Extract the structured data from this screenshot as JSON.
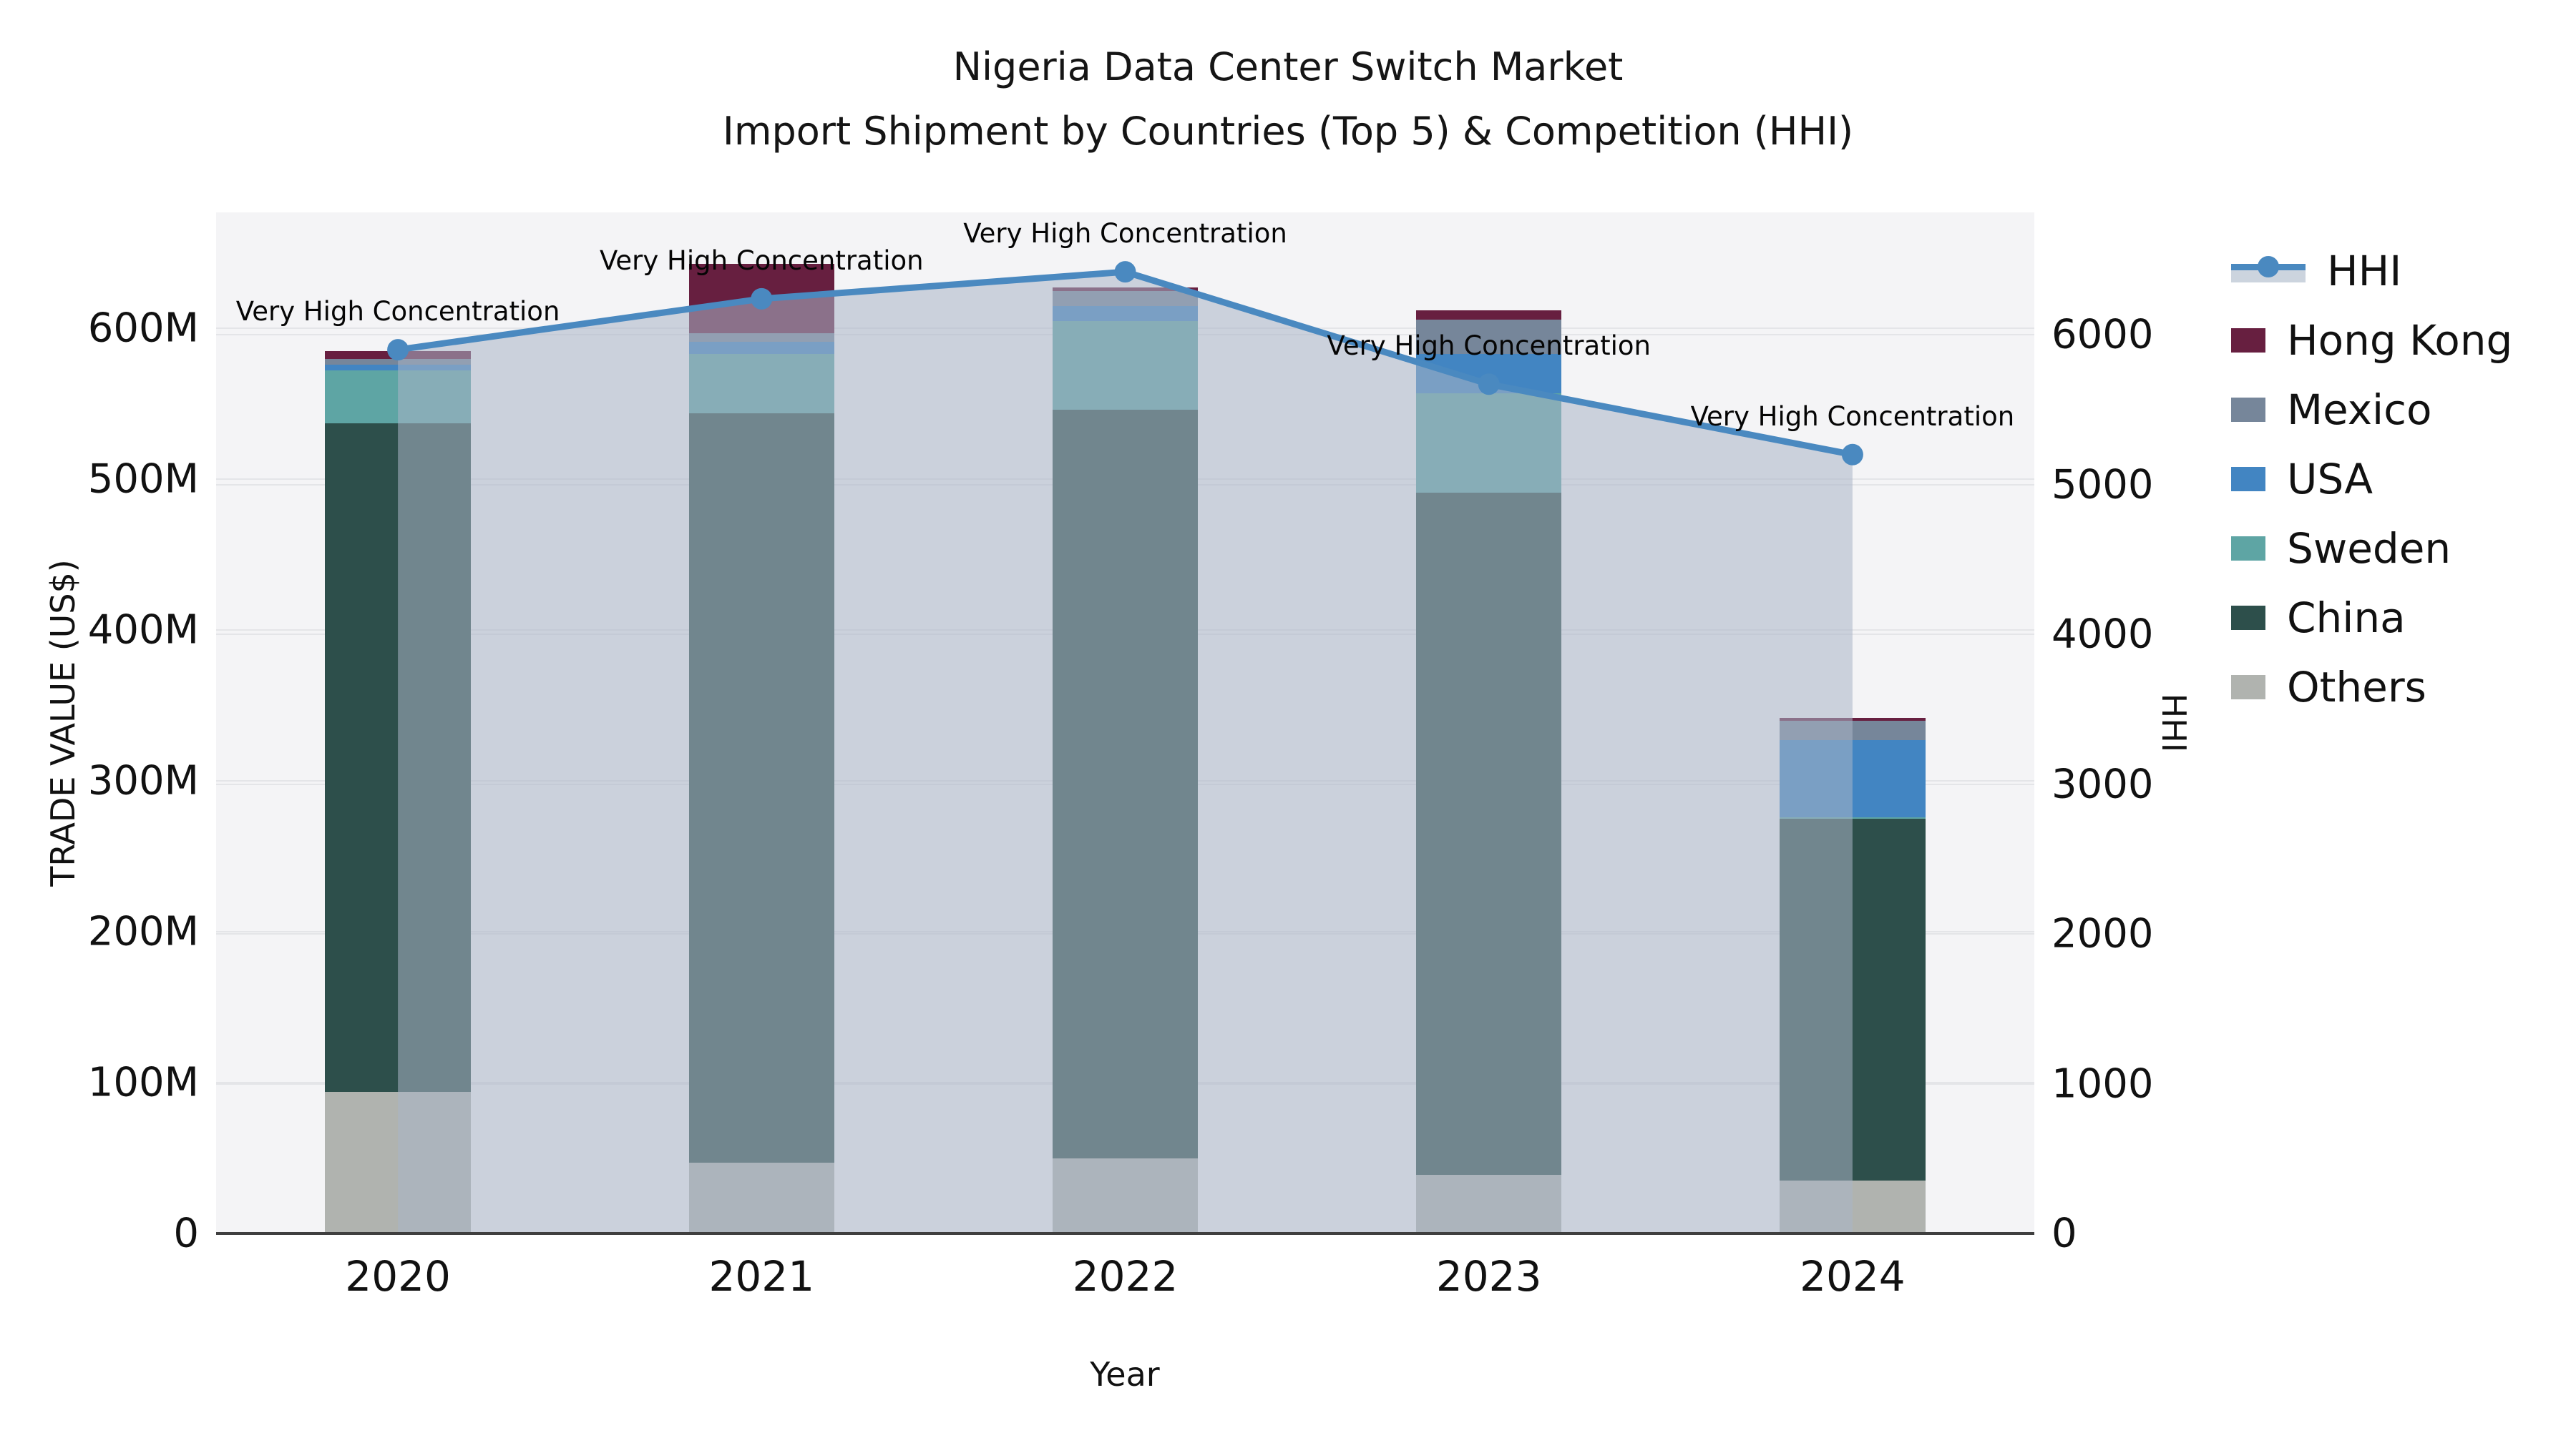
{
  "title": {
    "line1": "Nigeria Data Center Switch Market",
    "line2": "Import Shipment by Countries (Top 5) & Competition (HHI)"
  },
  "chart_data": {
    "type": "bar+line",
    "bar_type": "stacked",
    "unit_bars": "million US$",
    "categories": [
      "2020",
      "2021",
      "2022",
      "2023",
      "2024"
    ],
    "series": [
      {
        "name": "Others",
        "color": "#b0b3af",
        "values": [
          94,
          47,
          50,
          39,
          35
        ]
      },
      {
        "name": "China",
        "color": "#2d4f4b",
        "values": [
          443,
          497,
          496,
          452,
          240
        ]
      },
      {
        "name": "Sweden",
        "color": "#5ea5a4",
        "values": [
          35,
          39,
          59,
          66,
          1
        ]
      },
      {
        "name": "USA",
        "color": "#4285c2",
        "values": [
          4,
          8,
          10,
          26,
          51
        ]
      },
      {
        "name": "Mexico",
        "color": "#76869a",
        "values": [
          4,
          6,
          10,
          23,
          13
        ]
      },
      {
        "name": "Hong Kong",
        "color": "#671f40",
        "values": [
          5,
          46,
          2,
          6,
          2
        ]
      }
    ],
    "bar_totals_m": [
      585,
      643,
      627,
      612,
      342
    ],
    "line_series": {
      "name": "HHI",
      "color": "#4a89c0",
      "area_fill": "rgba(170,181,199,0.55)",
      "values": [
        5900,
        6240,
        6420,
        5670,
        5200
      ]
    },
    "annotations": [
      "Very High Concentration",
      "Very High Concentration",
      "Very High Concentration",
      "Very High Concentration",
      "Very High Concentration"
    ],
    "axes": {
      "x_label": "Year",
      "y_left_label": "TRADE VALUE (US$)",
      "y_right_label": "HHI",
      "y_left_ticks": [
        "0",
        "100M",
        "200M",
        "300M",
        "400M",
        "500M",
        "600M"
      ],
      "y_left_tick_values_m": [
        0,
        100,
        200,
        300,
        400,
        500,
        600
      ],
      "y_right_ticks": [
        "0",
        "1000",
        "2000",
        "3000",
        "4000",
        "5000",
        "6000"
      ],
      "y_right_tick_values": [
        0,
        1000,
        2000,
        3000,
        4000,
        5000,
        6000
      ],
      "y_left_max_m": 677,
      "y_right_max": 6817,
      "grid": true
    },
    "legend": {
      "position": "right",
      "items": [
        {
          "label": "HHI",
          "type": "line",
          "color": "#4a89c0",
          "band_color": "#ccd4de"
        },
        {
          "label": "Hong Kong",
          "type": "patch",
          "color": "#671f40"
        },
        {
          "label": "Mexico",
          "type": "patch",
          "color": "#76869a"
        },
        {
          "label": "USA",
          "type": "patch",
          "color": "#4285c2"
        },
        {
          "label": "Sweden",
          "type": "patch",
          "color": "#5ea5a4"
        },
        {
          "label": "China",
          "type": "patch",
          "color": "#2d4f4b"
        },
        {
          "label": "Others",
          "type": "patch",
          "color": "#b0b3af"
        }
      ]
    }
  }
}
